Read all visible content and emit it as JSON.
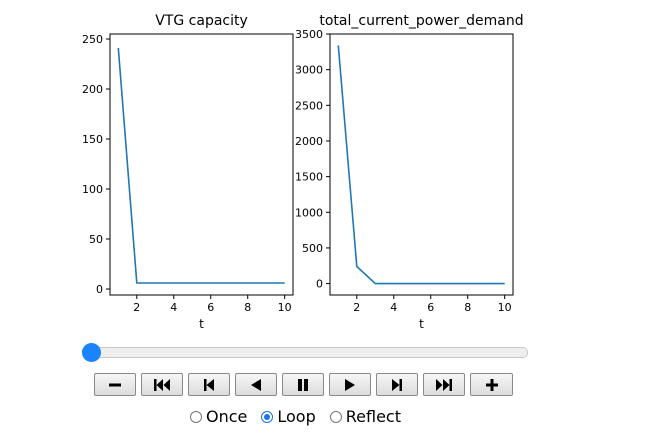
{
  "chart_data": [
    {
      "type": "line",
      "title": "VTG capacity",
      "xlabel": "t",
      "ylabel": "",
      "x": [
        1,
        2,
        3,
        4,
        5,
        6,
        7,
        8,
        9,
        10
      ],
      "series": [
        {
          "values": [
            241,
            6,
            6,
            6,
            6,
            6,
            6,
            6,
            6,
            6
          ],
          "color": "#1f77b4"
        }
      ],
      "xlim": [
        0.55,
        10.45
      ],
      "ylim": [
        -6,
        255
      ],
      "xticks": [
        2,
        4,
        6,
        8,
        10
      ],
      "yticks": [
        0,
        50,
        100,
        150,
        200,
        250
      ],
      "grid": false
    },
    {
      "type": "line",
      "title": "total_current_power_demand",
      "xlabel": "t",
      "ylabel": "",
      "x": [
        1,
        2,
        3,
        4,
        5,
        6,
        7,
        8,
        9,
        10
      ],
      "series": [
        {
          "values": [
            3340,
            240,
            0,
            0,
            0,
            0,
            0,
            0,
            0,
            0
          ],
          "color": "#1f77b4"
        }
      ],
      "xlim": [
        0.55,
        10.45
      ],
      "ylim": [
        -160,
        3500
      ],
      "xticks": [
        2,
        4,
        6,
        8,
        10
      ],
      "yticks": [
        0,
        500,
        1000,
        1500,
        2000,
        2500,
        3000,
        3500
      ],
      "grid": false
    }
  ],
  "player": {
    "frame_fraction": 0,
    "buttons": [
      {
        "name": "decrease-speed-button",
        "icon": "minus-icon"
      },
      {
        "name": "first-frame-button",
        "icon": "fast-backward-icon"
      },
      {
        "name": "previous-frame-button",
        "icon": "step-backward-icon"
      },
      {
        "name": "play-reverse-button",
        "icon": "play-reverse-icon"
      },
      {
        "name": "pause-button",
        "icon": "pause-icon"
      },
      {
        "name": "play-button",
        "icon": "play-icon"
      },
      {
        "name": "next-frame-button",
        "icon": "step-forward-icon"
      },
      {
        "name": "last-frame-button",
        "icon": "fast-forward-icon"
      },
      {
        "name": "increase-speed-button",
        "icon": "plus-icon"
      }
    ],
    "modes": [
      {
        "label": "Once",
        "checked": false
      },
      {
        "label": "Loop",
        "checked": true
      },
      {
        "label": "Reflect",
        "checked": false
      }
    ]
  }
}
